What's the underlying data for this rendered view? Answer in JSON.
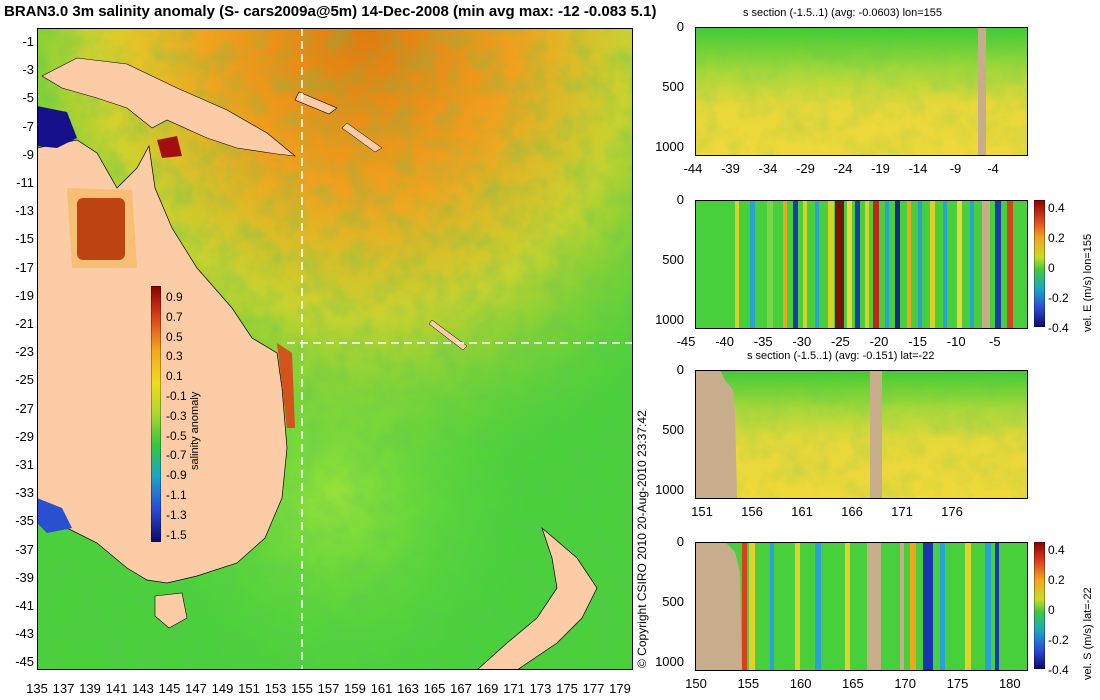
{
  "title": "BRAN3.0 3m salinity anomaly (S- cars2009a@5m) 14-Dec-2008 (min avg max: -12 -0.083 5.1)",
  "copyright": "© Copyright CSIRO 2010   20-Aug-2010 23:37:42",
  "map": {
    "y_ticks": [
      "-1",
      "-3",
      "-5",
      "-7",
      "-9",
      "-11",
      "-13",
      "-15",
      "-17",
      "-19",
      "-21",
      "-23",
      "-25",
      "-27",
      "-29",
      "-31",
      "-33",
      "-35",
      "-37",
      "-39",
      "-41",
      "-43",
      "-45"
    ],
    "x_ticks": [
      "135",
      "137",
      "139",
      "141",
      "143",
      "145",
      "147",
      "149",
      "151",
      "153",
      "155",
      "157",
      "159",
      "161",
      "163",
      "165",
      "167",
      "169",
      "171",
      "173",
      "175",
      "177",
      "179"
    ],
    "colorbar": {
      "label": "salinity anomaly",
      "ticks": [
        "0.9",
        "0.7",
        "0.5",
        "0.3",
        "0.1",
        "-0.1",
        "-0.3",
        "-0.5",
        "-0.7",
        "-0.9",
        "-1.1",
        "-1.3",
        "-1.5"
      ]
    },
    "section_lines": {
      "lon": 155,
      "lat": -22
    },
    "colors": {
      "land": "#fbcca6",
      "ocean_base": "#47d33c",
      "warm": "#f2a51c",
      "dashes": "#ffffff"
    }
  },
  "sections": [
    {
      "id": "s-lon",
      "title": "s section (-1.5..1) (avg: -0.0603) lon=155",
      "y_ticks": [
        "0",
        "500",
        "1000"
      ],
      "x_ticks": [
        "-44",
        "-39",
        "-34",
        "-29",
        "-24",
        "-19",
        "-14",
        "-9",
        "-4"
      ],
      "colorbar": null
    },
    {
      "id": "u-lon",
      "title": "",
      "y_ticks": [
        "0",
        "500",
        "1000"
      ],
      "x_ticks": [
        "-45",
        "-40",
        "-35",
        "-30",
        "-25",
        "-20",
        "-15",
        "-10",
        "-5"
      ],
      "colorbar": {
        "label": "vel. E (m/s) lon=155",
        "ticks": [
          "0.4",
          "0.2",
          "0",
          "-0.2",
          "-0.4"
        ]
      }
    },
    {
      "id": "s-lat",
      "title": "s section (-1.5..1) (avg: -0.151) lat=-22",
      "y_ticks": [
        "0",
        "500",
        "1000"
      ],
      "x_ticks": [
        "151",
        "156",
        "161",
        "166",
        "171",
        "176"
      ],
      "colorbar": null
    },
    {
      "id": "v-lat",
      "title": "",
      "y_ticks": [
        "0",
        "500",
        "1000"
      ],
      "x_ticks": [
        "150",
        "155",
        "160",
        "165",
        "170",
        "175",
        "180"
      ],
      "colorbar": {
        "label": "vel. S (m/s) lat=-22",
        "ticks": [
          "0.4",
          "0.2",
          "0",
          "-0.2",
          "-0.4"
        ]
      }
    }
  ]
}
